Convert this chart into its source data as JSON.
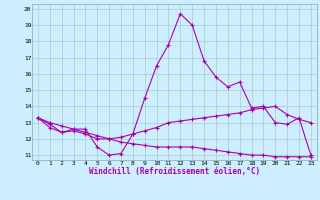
{
  "title": "",
  "xlabel": "Windchill (Refroidissement éolien,°C)",
  "x": [
    0,
    1,
    2,
    3,
    4,
    5,
    6,
    7,
    8,
    9,
    10,
    11,
    12,
    13,
    14,
    15,
    16,
    17,
    18,
    19,
    20,
    21,
    22,
    23
  ],
  "line1": [
    13.3,
    12.7,
    12.4,
    12.6,
    12.6,
    11.5,
    11.0,
    11.1,
    12.3,
    14.5,
    16.5,
    17.8,
    19.7,
    19.0,
    16.8,
    15.8,
    15.2,
    15.5,
    13.9,
    14.0,
    13.0,
    12.9,
    13.3,
    11.0
  ],
  "line2": [
    13.3,
    12.9,
    12.4,
    12.5,
    12.3,
    12.0,
    12.0,
    12.1,
    12.3,
    12.5,
    12.7,
    13.0,
    13.1,
    13.2,
    13.3,
    13.4,
    13.5,
    13.6,
    13.8,
    13.9,
    14.0,
    13.5,
    13.2,
    13.0
  ],
  "line3": [
    13.3,
    13.0,
    12.8,
    12.6,
    12.4,
    12.2,
    12.0,
    11.8,
    11.7,
    11.6,
    11.5,
    11.5,
    11.5,
    11.5,
    11.4,
    11.3,
    11.2,
    11.1,
    11.0,
    11.0,
    10.9,
    10.9,
    10.9,
    10.9
  ],
  "line_color": "#aa00aa",
  "bg_color": "#cceeff",
  "grid_color": "#aacccc",
  "ylim": [
    11,
    20
  ],
  "yticks": [
    11,
    12,
    13,
    14,
    15,
    16,
    17,
    18,
    19,
    20
  ],
  "xticks": [
    0,
    1,
    2,
    3,
    4,
    5,
    6,
    7,
    8,
    9,
    10,
    11,
    12,
    13,
    14,
    15,
    16,
    17,
    18,
    19,
    20,
    21,
    22,
    23
  ]
}
